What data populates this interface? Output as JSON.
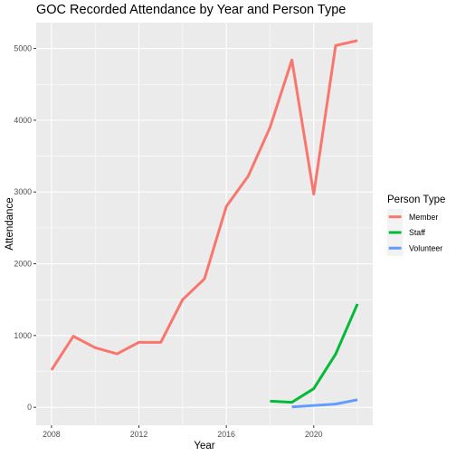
{
  "chart_data": {
    "type": "line",
    "title": "GOC Recorded Attendance by Year and Person Type",
    "xlabel": "Year",
    "ylabel": "Attendance",
    "xlim": [
      2007.3,
      2022.7
    ],
    "ylim": [
      -250,
      5360
    ],
    "x_ticks": [
      2008,
      2012,
      2016,
      2020
    ],
    "y_ticks": [
      0,
      1000,
      2000,
      3000,
      4000,
      5000
    ],
    "grid": true,
    "legend": {
      "title": "Person Type",
      "placement": "right"
    },
    "series": [
      {
        "name": "Member",
        "color": "#F8766D",
        "x": [
          2008,
          2009,
          2010,
          2011,
          2012,
          2013,
          2014,
          2015,
          2016,
          2017,
          2018,
          2019,
          2020,
          2021,
          2022
        ],
        "y": [
          520,
          990,
          830,
          745,
          905,
          905,
          1500,
          1790,
          2800,
          3220,
          3900,
          4840,
          2970,
          5040,
          5110
        ]
      },
      {
        "name": "Staff",
        "color": "#00BA38",
        "x": [
          2018,
          2019,
          2020,
          2021,
          2022
        ],
        "y": [
          85,
          70,
          260,
          740,
          1440
        ]
      },
      {
        "name": "Volunteer",
        "color": "#619CFF",
        "x": [
          2019,
          2020,
          2021,
          2022
        ],
        "y": [
          5,
          25,
          45,
          105
        ]
      }
    ]
  }
}
